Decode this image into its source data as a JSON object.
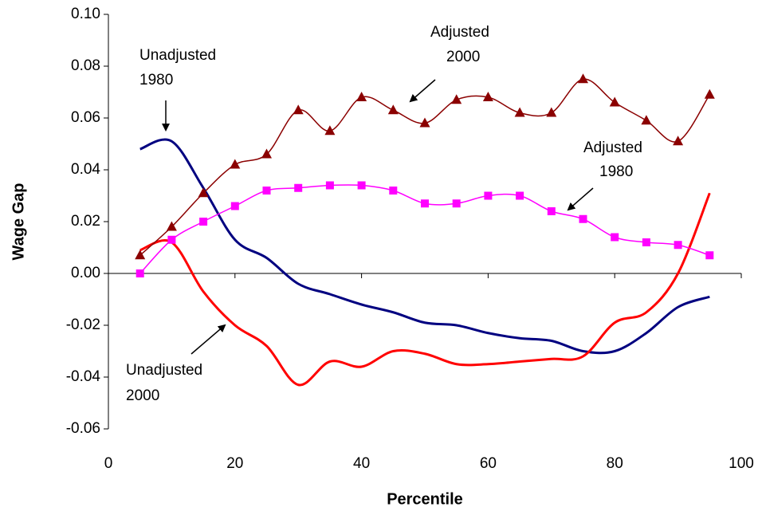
{
  "chart_data": {
    "type": "line",
    "x_label": "Percentile",
    "y_label": "Wage Gap",
    "x": [
      5,
      10,
      15,
      20,
      25,
      30,
      35,
      40,
      45,
      50,
      55,
      60,
      65,
      70,
      75,
      80,
      85,
      90,
      95
    ],
    "series": [
      {
        "name": "Unadjusted 1980",
        "color": "#000080",
        "marker": "none",
        "values": [
          0.048,
          0.051,
          0.033,
          0.013,
          0.006,
          -0.004,
          -0.008,
          -0.012,
          -0.015,
          -0.019,
          -0.02,
          -0.023,
          -0.025,
          -0.026,
          -0.03,
          -0.03,
          -0.023,
          -0.013,
          -0.009
        ]
      },
      {
        "name": "Unadjusted 2000",
        "color": "#ff0000",
        "marker": "none",
        "values": [
          0.009,
          0.012,
          -0.007,
          -0.02,
          -0.028,
          -0.043,
          -0.034,
          -0.036,
          -0.03,
          -0.031,
          -0.035,
          -0.035,
          -0.034,
          -0.033,
          -0.032,
          -0.019,
          -0.015,
          0.0,
          0.031
        ]
      },
      {
        "name": "Adjusted 1980",
        "color": "#ff00ff",
        "marker": "square",
        "values": [
          0.0,
          0.013,
          0.02,
          0.026,
          0.032,
          0.033,
          0.034,
          0.034,
          0.032,
          0.027,
          0.027,
          0.03,
          0.03,
          0.024,
          0.021,
          0.014,
          0.012,
          0.011,
          0.007
        ]
      },
      {
        "name": "Adjusted 2000",
        "color": "#8b0000",
        "marker": "triangle",
        "values": [
          0.007,
          0.018,
          0.031,
          0.042,
          0.046,
          0.063,
          0.055,
          0.068,
          0.063,
          0.058,
          0.067,
          0.068,
          0.062,
          0.062,
          0.075,
          0.066,
          0.059,
          0.051,
          0.069
        ]
      }
    ],
    "annotations": [
      [
        "Unadjusted",
        "1980"
      ],
      [
        "Adjusted",
        "2000"
      ],
      [
        "Adjusted",
        "1980"
      ],
      [
        "Unadjusted",
        "2000"
      ]
    ],
    "xlim": [
      0,
      100
    ],
    "xticks": [
      0,
      20,
      40,
      60,
      80,
      100
    ],
    "ylim": [
      -0.06,
      0.1
    ],
    "yticks": [
      {
        "value": 0.1,
        "label": "0.10"
      },
      {
        "value": 0.08,
        "label": "0.08"
      },
      {
        "value": 0.06,
        "label": "0.06"
      },
      {
        "value": 0.04,
        "label": "0.04"
      },
      {
        "value": 0.02,
        "label": "0.02"
      },
      {
        "value": 0,
        "label": "0.00"
      },
      {
        "value": -0.02,
        "label": "-0.02"
      },
      {
        "value": -0.04,
        "label": "-0.04"
      },
      {
        "value": -0.06,
        "label": "-0.06"
      }
    ],
    "grid": false
  }
}
